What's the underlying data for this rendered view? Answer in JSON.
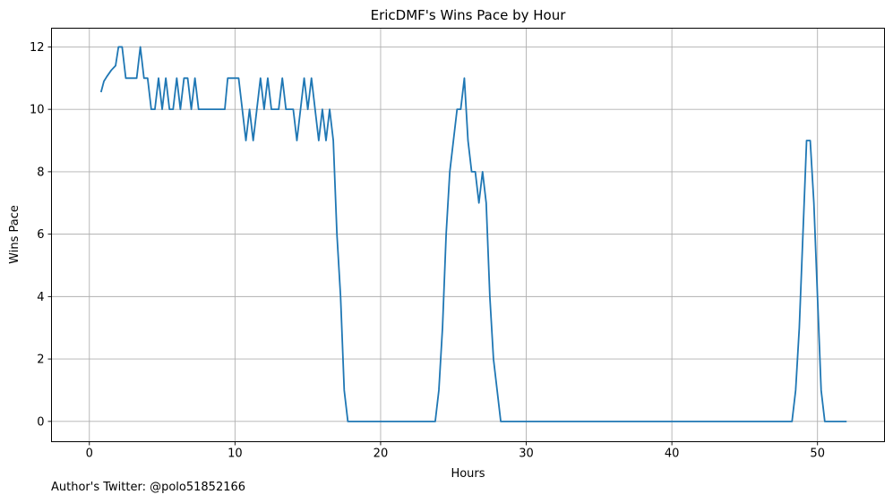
{
  "chart_data": {
    "type": "line",
    "title": "EricDMF's Wins Pace by Hour",
    "xlabel": "Hours",
    "ylabel": "Wins Pace",
    "xlim": [
      -2.6,
      54.6
    ],
    "ylim": [
      -0.65,
      12.6
    ],
    "xticks": [
      0,
      10,
      20,
      30,
      40,
      50
    ],
    "yticks": [
      0,
      2,
      4,
      6,
      8,
      10,
      12
    ],
    "grid": true,
    "line_color": "#1f77b4",
    "series": [
      {
        "x": [
          0.8,
          1.0,
          1.2,
          1.5,
          1.8,
          2.0,
          2.25,
          2.5,
          3.0,
          3.25,
          3.5,
          3.75,
          4.0,
          4.25,
          4.5,
          4.75,
          5.0,
          5.25,
          5.5,
          5.75,
          6.0,
          6.25,
          6.5,
          6.75,
          7.0,
          7.25,
          7.5,
          8.0,
          8.5,
          9.0,
          9.3,
          9.5,
          10.0,
          10.25,
          10.5,
          10.75,
          11.0,
          11.25,
          11.5,
          11.75,
          12.0,
          12.25,
          12.5,
          13.0,
          13.25,
          13.5,
          13.75,
          14.0,
          14.25,
          14.5,
          14.75,
          15.0,
          15.25,
          15.5,
          15.75,
          16.0,
          16.25,
          16.5,
          16.75,
          17.0,
          17.25,
          17.5,
          17.75,
          18.0,
          18.5,
          23.75,
          24.0,
          24.25,
          24.5,
          24.75,
          25.0,
          25.25,
          25.5,
          25.75,
          26.0,
          26.25,
          26.5,
          26.75,
          27.0,
          27.25,
          27.5,
          27.75,
          28.0,
          28.25,
          48.25,
          48.5,
          48.75,
          49.0,
          49.25,
          49.5,
          49.75,
          50.0,
          50.25,
          50.5,
          52.0
        ],
        "y": [
          10.55,
          10.9,
          11.05,
          11.25,
          11.4,
          12.0,
          12.0,
          11.0,
          11.0,
          11.0,
          12.0,
          11.0,
          11.0,
          10.0,
          10.0,
          11.0,
          10.0,
          11.0,
          10.0,
          10.0,
          11.0,
          10.0,
          11.0,
          11.0,
          10.0,
          11.0,
          10.0,
          10.0,
          10.0,
          10.0,
          10.0,
          11.0,
          11.0,
          11.0,
          10.0,
          9.0,
          10.0,
          9.0,
          10.0,
          11.0,
          10.0,
          11.0,
          10.0,
          10.0,
          11.0,
          10.0,
          10.0,
          10.0,
          9.0,
          10.0,
          11.0,
          10.0,
          11.0,
          10.0,
          9.0,
          10.0,
          9.0,
          10.0,
          9.0,
          6.0,
          4.0,
          1.0,
          0.0,
          0.0,
          0.0,
          0.0,
          1.0,
          3.0,
          6.0,
          8.0,
          9.0,
          10.0,
          10.0,
          11.0,
          9.0,
          8.0,
          8.0,
          7.0,
          8.0,
          7.0,
          4.0,
          2.0,
          1.0,
          0.0,
          0.0,
          1.0,
          3.0,
          6.0,
          9.0,
          9.0,
          7.0,
          4.0,
          1.0,
          0.0,
          0.0
        ]
      }
    ]
  },
  "footer": {
    "text": "Author's Twitter: @polo51852166"
  }
}
